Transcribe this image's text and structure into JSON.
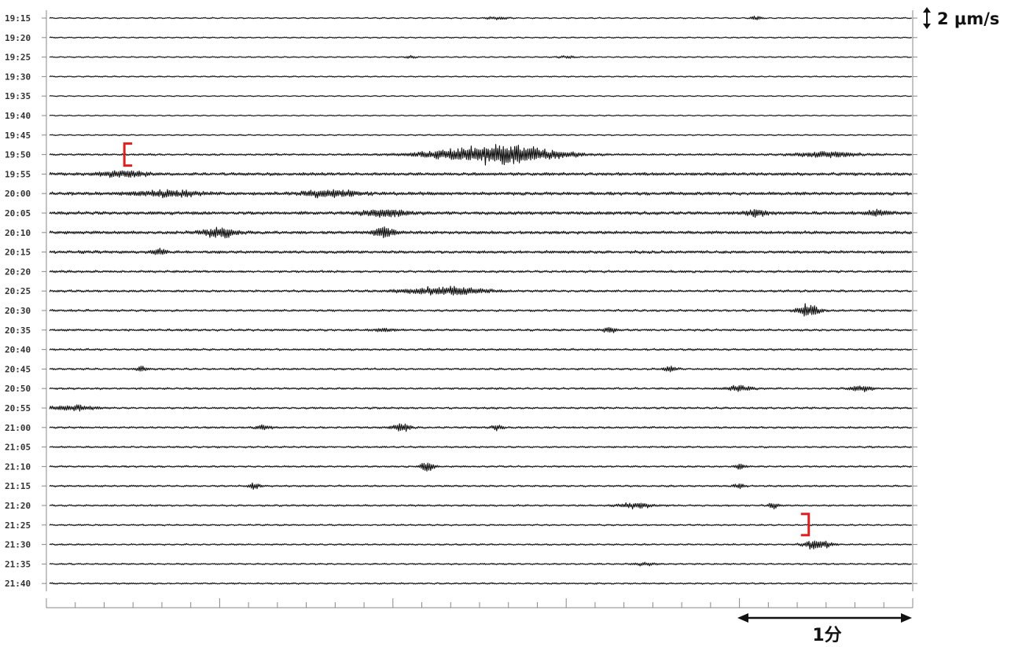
{
  "chart_data": {
    "type": "line",
    "title": "",
    "xlabel": "",
    "ylabel": "",
    "lines": [
      "19:15",
      "19:20",
      "19:25",
      "19:30",
      "19:35",
      "19:40",
      "19:45",
      "19:50",
      "19:55",
      "20:00",
      "20:05",
      "20:10",
      "20:15",
      "20:20",
      "20:25",
      "20:30",
      "20:35",
      "20:40",
      "20:45",
      "20:50",
      "20:55",
      "21:00",
      "21:05",
      "21:10",
      "21:15",
      "21:20",
      "21:25",
      "21:30",
      "21:35",
      "21:40"
    ],
    "minutes_per_line": 5,
    "seconds_per_tick": 10,
    "amplitude_scale_label": "2 μm/s",
    "time_scale_label": "1分",
    "time_scale_minutes": 1,
    "bracket_color": "#e02020",
    "trace_color": "#111111",
    "bracket_start": {
      "line": "19:50",
      "minute": 0.45
    },
    "bracket_end": {
      "line": "21:25",
      "minute": 4.4
    },
    "noise_level": [
      0.5,
      0.5,
      0.5,
      0.5,
      0.4,
      0.4,
      0.5,
      0.9,
      1.5,
      1.6,
      1.6,
      1.5,
      1.4,
      1.1,
      1.1,
      1.0,
      1.0,
      0.9,
      0.9,
      0.9,
      0.9,
      0.9,
      0.8,
      0.8,
      0.8,
      0.8,
      0.7,
      0.7,
      0.7,
      0.7
    ],
    "events": [
      {
        "line": "19:15",
        "minute": 2.6,
        "amp": 2,
        "dur": 0.1
      },
      {
        "line": "19:15",
        "minute": 4.1,
        "amp": 3,
        "dur": 0.05
      },
      {
        "line": "19:25",
        "minute": 2.1,
        "amp": 2,
        "dur": 0.05
      },
      {
        "line": "19:25",
        "minute": 3.0,
        "amp": 1.5,
        "dur": 0.08
      },
      {
        "line": "19:50",
        "minute": 2.6,
        "amp": 14,
        "dur": 0.55
      },
      {
        "line": "19:50",
        "minute": 4.5,
        "amp": 4,
        "dur": 0.3
      },
      {
        "line": "19:55",
        "minute": 0.45,
        "amp": 5,
        "dur": 0.2
      },
      {
        "line": "20:00",
        "minute": 0.7,
        "amp": 4,
        "dur": 0.3
      },
      {
        "line": "20:00",
        "minute": 1.65,
        "amp": 5,
        "dur": 0.25
      },
      {
        "line": "20:05",
        "minute": 1.95,
        "amp": 5,
        "dur": 0.2
      },
      {
        "line": "20:05",
        "minute": 4.1,
        "amp": 5,
        "dur": 0.1
      },
      {
        "line": "20:05",
        "minute": 4.8,
        "amp": 5,
        "dur": 0.1
      },
      {
        "line": "20:10",
        "minute": 1.0,
        "amp": 7,
        "dur": 0.15
      },
      {
        "line": "20:10",
        "minute": 1.95,
        "amp": 7,
        "dur": 0.1
      },
      {
        "line": "20:15",
        "minute": 0.65,
        "amp": 5,
        "dur": 0.06
      },
      {
        "line": "20:25",
        "minute": 2.3,
        "amp": 6,
        "dur": 0.35
      },
      {
        "line": "20:30",
        "minute": 4.4,
        "amp": 9,
        "dur": 0.1
      },
      {
        "line": "20:35",
        "minute": 1.95,
        "amp": 3,
        "dur": 0.08
      },
      {
        "line": "20:35",
        "minute": 3.25,
        "amp": 4,
        "dur": 0.06
      },
      {
        "line": "20:45",
        "minute": 0.55,
        "amp": 4,
        "dur": 0.05
      },
      {
        "line": "20:45",
        "minute": 3.6,
        "amp": 4,
        "dur": 0.06
      },
      {
        "line": "20:50",
        "minute": 4.0,
        "amp": 4,
        "dur": 0.12
      },
      {
        "line": "20:50",
        "minute": 4.7,
        "amp": 4,
        "dur": 0.1
      },
      {
        "line": "20:55",
        "minute": 0.15,
        "amp": 4,
        "dur": 0.2
      },
      {
        "line": "21:00",
        "minute": 1.25,
        "amp": 5,
        "dur": 0.06
      },
      {
        "line": "21:00",
        "minute": 2.05,
        "amp": 7,
        "dur": 0.08
      },
      {
        "line": "21:00",
        "minute": 2.6,
        "amp": 4,
        "dur": 0.05
      },
      {
        "line": "21:10",
        "minute": 2.2,
        "amp": 9,
        "dur": 0.06
      },
      {
        "line": "21:10",
        "minute": 4.0,
        "amp": 4,
        "dur": 0.05
      },
      {
        "line": "21:15",
        "minute": 1.2,
        "amp": 6,
        "dur": 0.05
      },
      {
        "line": "21:15",
        "minute": 4.0,
        "amp": 4,
        "dur": 0.05
      },
      {
        "line": "21:20",
        "minute": 3.4,
        "amp": 4,
        "dur": 0.15
      },
      {
        "line": "21:20",
        "minute": 4.2,
        "amp": 4,
        "dur": 0.05
      },
      {
        "line": "21:30",
        "minute": 4.45,
        "amp": 7,
        "dur": 0.12
      },
      {
        "line": "21:35",
        "minute": 3.45,
        "amp": 2,
        "dur": 0.1
      }
    ]
  }
}
